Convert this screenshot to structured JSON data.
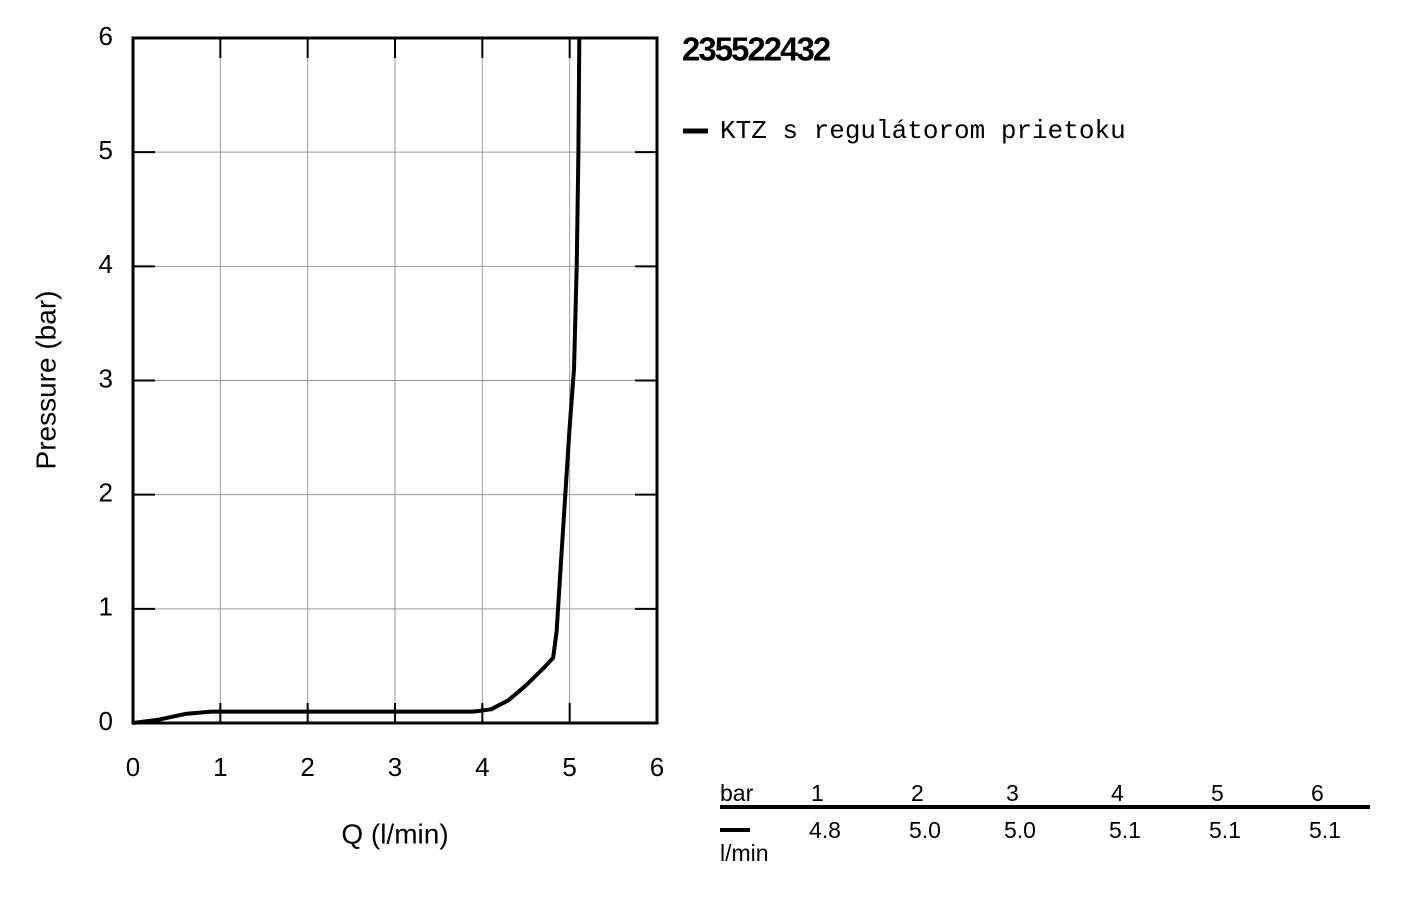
{
  "chart_data": {
    "type": "line",
    "title": "235522432",
    "xlabel": "Q (l/min)",
    "ylabel": "Pressure (bar)",
    "xlim": [
      0,
      6
    ],
    "ylim": [
      0,
      6
    ],
    "xticks": [
      0,
      1,
      2,
      3,
      4,
      5,
      6
    ],
    "yticks": [
      0,
      1,
      2,
      3,
      4,
      5,
      6
    ],
    "grid": true,
    "series": [
      {
        "name": "KTZ s regulátorom prietoku",
        "color": "#000000",
        "x": [
          0,
          0.3,
          0.6,
          0.9,
          2,
          3,
          3.9,
          4.1,
          4.3,
          4.5,
          4.7,
          4.81,
          4.85,
          4.9,
          4.95,
          5.0,
          5.05,
          5.08,
          5.1,
          5.11
        ],
        "values": [
          0,
          0.03,
          0.08,
          0.1,
          0.1,
          0.1,
          0.1,
          0.12,
          0.2,
          0.33,
          0.48,
          0.57,
          0.8,
          1.4,
          2.0,
          2.6,
          3.1,
          4.0,
          5.0,
          6.0
        ]
      }
    ],
    "table": {
      "header": [
        "bar",
        "1",
        "2",
        "3",
        "4",
        "5",
        "6"
      ],
      "unit": "l/min",
      "values": [
        "4.8",
        "5.0",
        "5.0",
        "5.1",
        "5.1",
        "5.1"
      ]
    }
  }
}
